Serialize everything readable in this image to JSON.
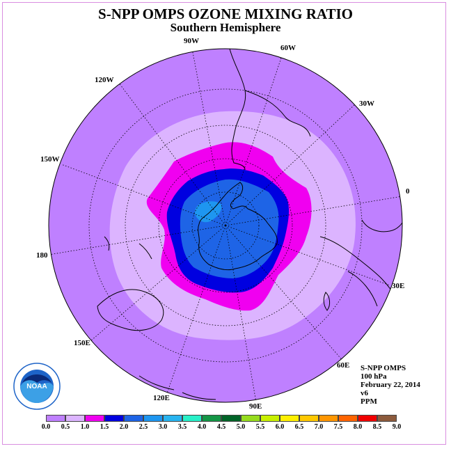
{
  "title": "S-NPP OMPS OZONE MIXING RATIO",
  "subtitle": "Southern Hemisphere",
  "map": {
    "projection": "polar stereographic",
    "pole": "south",
    "longitude_labels": [
      "90W",
      "60W",
      "30W",
      "0",
      "30E",
      "60E",
      "90E",
      "120E",
      "150E",
      "180",
      "150W",
      "120W"
    ],
    "graticule": "dotted"
  },
  "info": {
    "instrument": "S-NPP OMPS",
    "level": "100 hPa",
    "date": "February 22, 2014",
    "version": "v6",
    "units": "PPM"
  },
  "logo": {
    "text": "NOAA",
    "icon": "noaa-logo-icon"
  },
  "legend": {
    "ticks": [
      "0.0",
      "0.5",
      "1.0",
      "1.5",
      "2.0",
      "2.5",
      "3.0",
      "3.5",
      "4.0",
      "4.5",
      "5.0",
      "5.5",
      "6.0",
      "6.5",
      "7.0",
      "7.5",
      "8.0",
      "8.5",
      "9.0"
    ],
    "colors": [
      "#bf80ff",
      "#dcb4ff",
      "#f000f0",
      "#0000e0",
      "#1e64e6",
      "#1e96f0",
      "#28b4f0",
      "#28f0c8",
      "#149646",
      "#006428",
      "#96dc1e",
      "#c8f000",
      "#fff000",
      "#ffc800",
      "#ff9600",
      "#ff6400",
      "#f00000",
      "#8c5a3c"
    ]
  },
  "colors": {
    "background_field": "#bf80ff",
    "frame": "#d98ee0"
  }
}
